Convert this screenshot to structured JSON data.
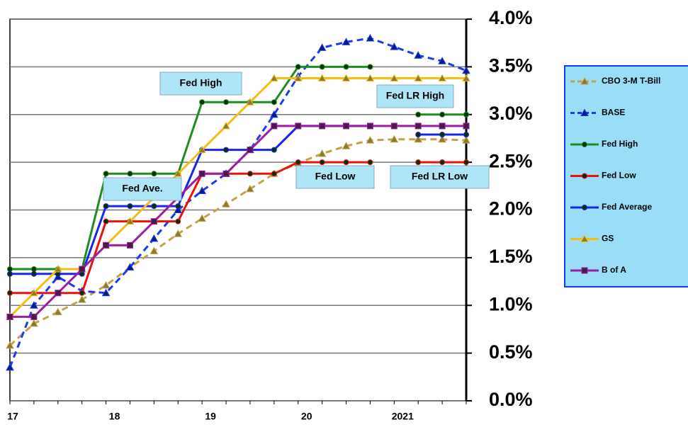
{
  "chart_data": {
    "type": "line",
    "categories": [
      "17",
      null,
      null,
      null,
      "18",
      null,
      null,
      null,
      "19",
      null,
      null,
      null,
      "20",
      null,
      null,
      null,
      "2021",
      null,
      null,
      null
    ],
    "ylim": [
      0,
      4
    ],
    "yticks": [
      {
        "value": 0,
        "label": "0.0%"
      },
      {
        "value": 0.5,
        "label": "0.5%"
      },
      {
        "value": 1,
        "label": "1.0%"
      },
      {
        "value": 1.5,
        "label": "1.5%"
      },
      {
        "value": 2,
        "label": "2.0%"
      },
      {
        "value": 2.5,
        "label": "2.5%"
      },
      {
        "value": 3,
        "label": "3.0%"
      },
      {
        "value": 3.5,
        "label": "3.5%"
      },
      {
        "value": 4,
        "label": "4.0%"
      }
    ],
    "grid": true,
    "legend": "right",
    "series": [
      {
        "name": "CBO 3-M T-Bill",
        "color": "#c4a24a",
        "marker": "triangle",
        "dashed": true,
        "values": [
          0.58,
          0.81,
          0.93,
          1.06,
          1.21,
          1.4,
          1.57,
          1.75,
          1.91,
          2.06,
          2.22,
          2.38,
          2.49,
          2.59,
          2.67,
          2.73,
          2.74,
          2.74,
          2.74,
          2.73
        ]
      },
      {
        "name": "BASE",
        "color": "#1a3cf0",
        "marker": "triangle",
        "dashed": true,
        "values": [
          0.35,
          1.0,
          1.3,
          1.15,
          1.13,
          1.4,
          1.7,
          2.0,
          2.2,
          2.38,
          2.63,
          3.0,
          3.4,
          3.7,
          3.76,
          3.8,
          3.71,
          3.62,
          3.56,
          3.46
        ]
      },
      {
        "name": "Fed High",
        "color": "#1e8c1e",
        "marker": "circle",
        "dashed": false,
        "values": [
          1.38,
          1.38,
          1.38,
          1.38,
          2.38,
          2.38,
          2.38,
          2.38,
          3.13,
          3.13,
          3.13,
          3.13,
          3.5,
          3.5,
          3.5,
          3.5,
          null,
          3.0,
          3.0,
          3.0
        ]
      },
      {
        "name": "Fed Low",
        "color": "#e8140c",
        "marker": "circle",
        "dashed": false,
        "values": [
          1.13,
          1.13,
          1.13,
          1.13,
          1.88,
          1.88,
          1.88,
          1.88,
          2.38,
          2.38,
          2.38,
          2.38,
          2.5,
          2.5,
          2.5,
          2.5,
          null,
          2.5,
          2.5,
          2.5
        ]
      },
      {
        "name": "Fed Average",
        "color": "#1428e6",
        "marker": "circle",
        "dashed": false,
        "values": [
          1.33,
          1.33,
          1.33,
          1.33,
          2.04,
          2.04,
          2.04,
          2.04,
          2.63,
          2.63,
          2.63,
          2.63,
          2.88,
          2.88,
          2.88,
          2.88,
          null,
          2.79,
          2.79,
          2.79
        ]
      },
      {
        "name": "GS",
        "color": "#f7bc14",
        "marker": "triangle",
        "dashed": false,
        "values": [
          0.88,
          1.13,
          1.38,
          1.38,
          1.63,
          1.88,
          2.13,
          2.38,
          2.63,
          2.88,
          3.13,
          3.38,
          3.38,
          3.38,
          3.38,
          3.38,
          3.38,
          3.38,
          3.38,
          3.38
        ]
      },
      {
        "name": "B of A",
        "color": "#9c1fa0",
        "marker": "square",
        "dashed": false,
        "values": [
          0.88,
          0.88,
          1.13,
          1.38,
          1.63,
          1.63,
          1.88,
          2.13,
          2.38,
          2.38,
          2.63,
          2.88,
          2.88,
          2.88,
          2.88,
          2.88,
          2.88,
          2.88,
          2.88,
          2.88
        ]
      }
    ],
    "annotations": [
      "Fed High",
      "Fed Ave.",
      "Fed LR High",
      "Fed Low",
      "Fed LR Low"
    ]
  }
}
